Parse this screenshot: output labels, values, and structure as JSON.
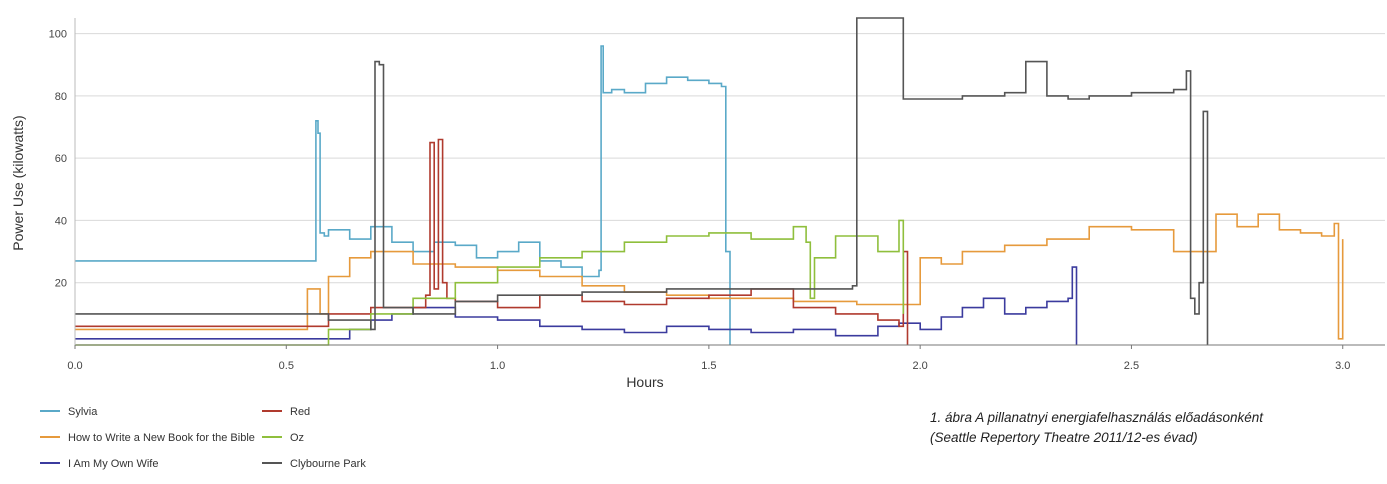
{
  "caption": {
    "line1": "1. ábra A pillanatnyi energiafelhasználás előadásonként",
    "line2": "(Seattle Repertory Theatre 2011/12-es évad)"
  },
  "chart_data": {
    "type": "line",
    "title": "",
    "xlabel": "Hours",
    "ylabel": "Power Use (kilowatts)",
    "xlim": [
      0,
      3.1
    ],
    "ylim": [
      0,
      105
    ],
    "x_ticks": [
      0,
      0.5,
      1.0,
      1.5,
      2.0,
      2.5,
      3.0
    ],
    "x_tick_labels": [
      "0.0",
      "0.5",
      "1.0",
      "1.5",
      "2.0",
      "2.5",
      "3.0"
    ],
    "y_ticks": [
      20,
      40,
      60,
      80,
      100
    ],
    "y_tick_labels": [
      "20",
      "40",
      "60",
      "80",
      "100"
    ],
    "grid": true,
    "legend_position": "bottom-left",
    "series": [
      {
        "name": "Sylvia",
        "color": "#5aa9c8",
        "x": [
          0,
          0.56,
          0.57,
          0.575,
          0.58,
          0.59,
          0.6,
          0.65,
          0.7,
          0.75,
          0.8,
          0.85,
          0.9,
          0.95,
          1.0,
          1.05,
          1.1,
          1.15,
          1.2,
          1.24,
          1.245,
          1.25,
          1.27,
          1.3,
          1.35,
          1.4,
          1.45,
          1.5,
          1.53,
          1.54,
          1.55
        ],
        "y": [
          27,
          27,
          72,
          68,
          36,
          35,
          37,
          34,
          38,
          33,
          30,
          33,
          32,
          28,
          30,
          33,
          27,
          25,
          22,
          24,
          96,
          81,
          82,
          81,
          84,
          86,
          85,
          84,
          83,
          30,
          0
        ]
      },
      {
        "name": "How to Write a New Book for the Bible",
        "color": "#e69a3c",
        "x": [
          0,
          0.54,
          0.55,
          0.58,
          0.6,
          0.65,
          0.7,
          0.8,
          0.9,
          1.0,
          1.1,
          1.2,
          1.3,
          1.4,
          1.5,
          1.6,
          1.7,
          1.8,
          1.85,
          1.9,
          2.0,
          2.05,
          2.1,
          2.2,
          2.3,
          2.4,
          2.5,
          2.6,
          2.7,
          2.75,
          2.8,
          2.85,
          2.9,
          2.95,
          2.98,
          2.99,
          3.0
        ],
        "y": [
          5,
          5,
          18,
          10,
          22,
          28,
          30,
          26,
          25,
          24,
          22,
          19,
          17,
          16,
          15,
          15,
          14,
          14,
          13,
          13,
          28,
          26,
          30,
          32,
          34,
          38,
          37,
          30,
          42,
          38,
          42,
          37,
          36,
          35,
          39,
          2,
          34
        ]
      },
      {
        "name": "I Am My Own Wife",
        "color": "#3b3b9e",
        "x": [
          0,
          0.6,
          0.65,
          0.7,
          0.75,
          0.8,
          0.9,
          1.0,
          1.1,
          1.2,
          1.3,
          1.4,
          1.5,
          1.6,
          1.7,
          1.8,
          1.9,
          1.95,
          2.0,
          2.05,
          2.1,
          2.15,
          2.2,
          2.25,
          2.3,
          2.35,
          2.36,
          2.37
        ],
        "y": [
          2,
          2,
          5,
          8,
          10,
          12,
          9,
          8,
          6,
          5,
          4,
          6,
          5,
          4,
          5,
          3,
          6,
          7,
          5,
          9,
          12,
          15,
          10,
          12,
          14,
          15,
          25,
          0
        ]
      },
      {
        "name": "Red",
        "color": "#b03a2e",
        "x": [
          0,
          0.55,
          0.6,
          0.7,
          0.83,
          0.84,
          0.85,
          0.86,
          0.87,
          0.88,
          0.9,
          1.0,
          1.1,
          1.2,
          1.3,
          1.4,
          1.5,
          1.6,
          1.7,
          1.8,
          1.9,
          1.95,
          1.96,
          1.97
        ],
        "y": [
          6,
          6,
          10,
          12,
          16,
          65,
          18,
          66,
          20,
          15,
          14,
          12,
          16,
          14,
          13,
          15,
          16,
          18,
          12,
          10,
          8,
          6,
          30,
          0
        ]
      },
      {
        "name": "Oz",
        "color": "#8fbf3c",
        "x": [
          0,
          0.5,
          0.6,
          0.7,
          0.8,
          0.9,
          1.0,
          1.1,
          1.2,
          1.3,
          1.4,
          1.5,
          1.6,
          1.7,
          1.73,
          1.74,
          1.75,
          1.8,
          1.9,
          1.95,
          1.96
        ],
        "y": [
          0,
          0,
          5,
          10,
          15,
          20,
          25,
          28,
          30,
          33,
          35,
          36,
          34,
          38,
          33,
          15,
          28,
          35,
          30,
          40,
          10
        ]
      },
      {
        "name": "Clybourne Park",
        "color": "#555555",
        "x": [
          0,
          0.5,
          0.6,
          0.7,
          0.71,
          0.72,
          0.73,
          0.8,
          0.9,
          1.0,
          1.2,
          1.4,
          1.6,
          1.8,
          1.84,
          1.85,
          1.9,
          1.95,
          1.96,
          2.0,
          2.1,
          2.2,
          2.25,
          2.3,
          2.35,
          2.4,
          2.5,
          2.6,
          2.63,
          2.64,
          2.65,
          2.66,
          2.67,
          2.68
        ],
        "y": [
          10,
          10,
          8,
          5,
          91,
          90,
          12,
          10,
          14,
          16,
          17,
          18,
          18,
          18,
          19,
          105,
          105,
          105,
          79,
          79,
          80,
          81,
          91,
          80,
          79,
          80,
          81,
          82,
          88,
          15,
          10,
          20,
          75,
          0
        ]
      }
    ]
  }
}
